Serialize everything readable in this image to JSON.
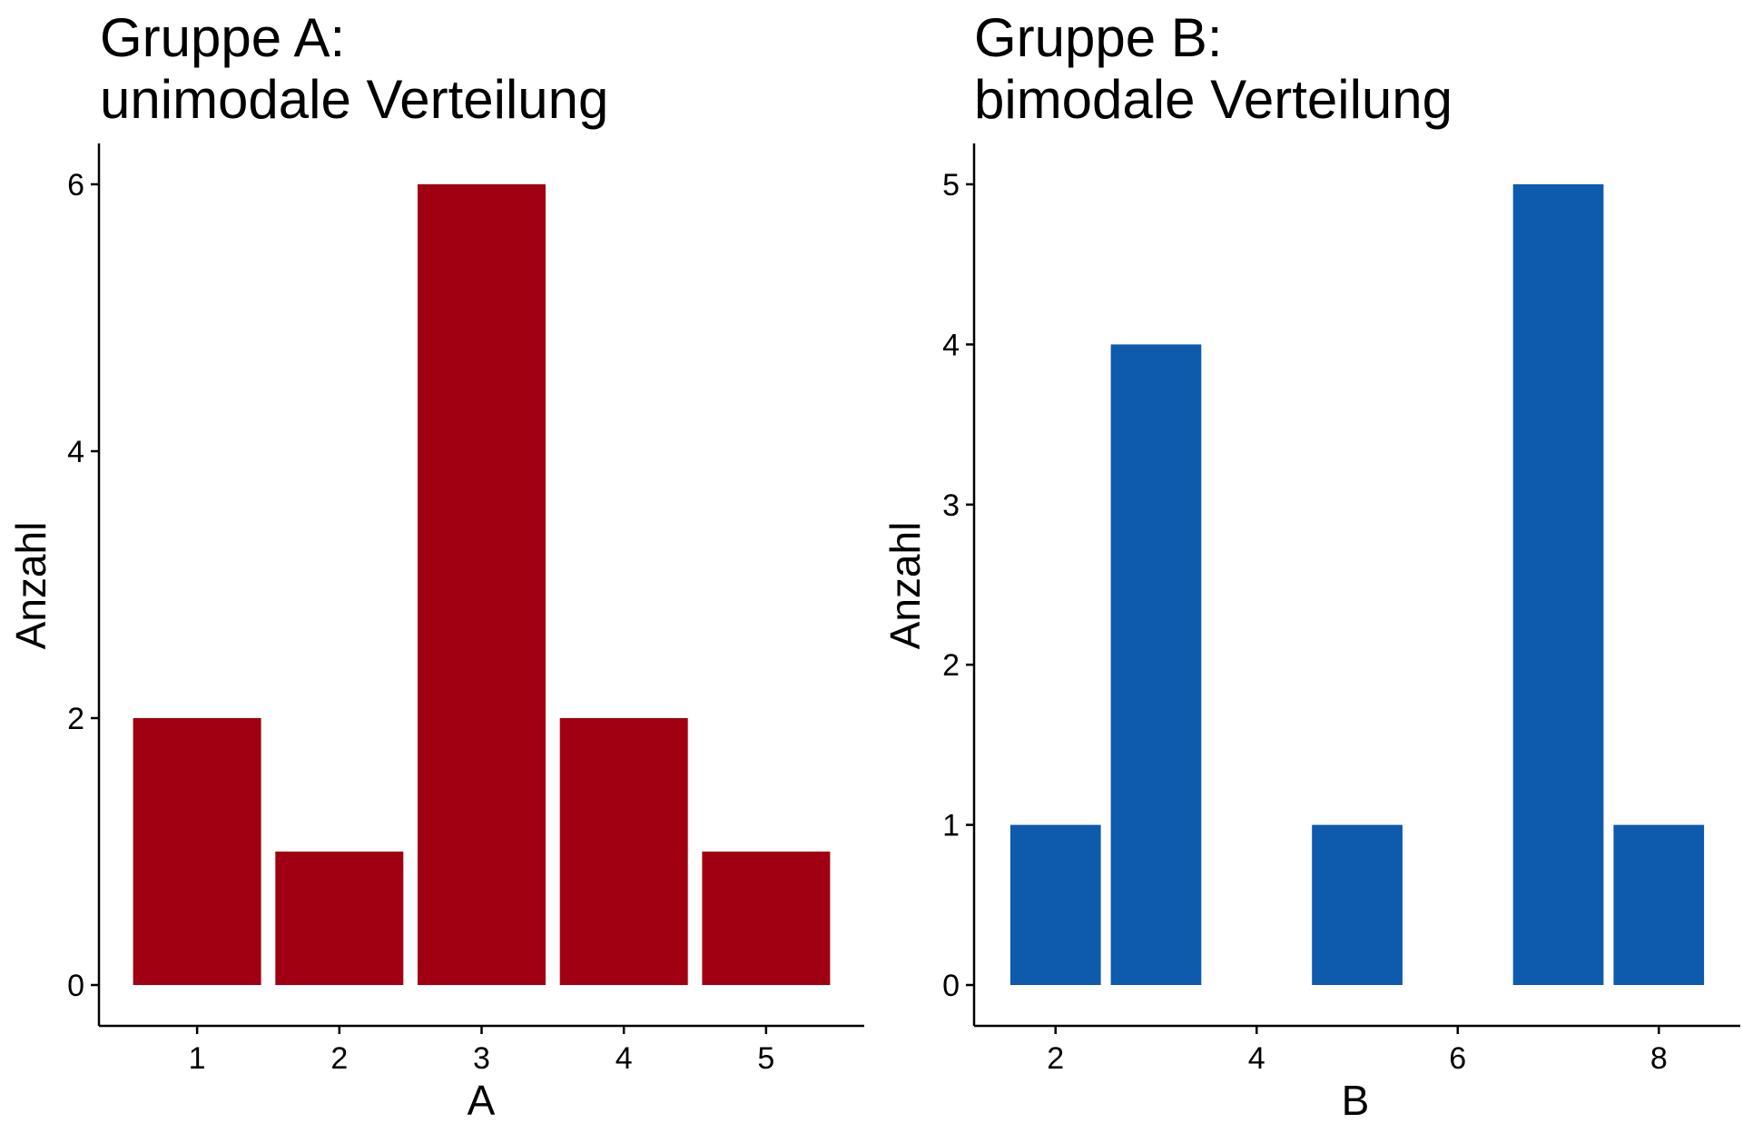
{
  "chart_data": [
    {
      "type": "bar",
      "title_line1": "Gruppe A:",
      "title_line2": "unimodale Verteilung",
      "xlabel": "A",
      "ylabel": "Anzahl",
      "x": [
        1,
        2,
        3,
        4,
        5
      ],
      "values": [
        2,
        1,
        6,
        2,
        1
      ],
      "xticks": [
        "1",
        "2",
        "3",
        "4",
        "5"
      ],
      "yticks": [
        "0",
        "2",
        "4",
        "6"
      ],
      "xlim": [
        0.31,
        5.69
      ],
      "ylim": [
        0,
        6
      ],
      "bar_color": "#A10012",
      "grid": false
    },
    {
      "type": "bar",
      "title_line1": "Gruppe B:",
      "title_line2": "bimodale Verteilung",
      "xlabel": "B",
      "ylabel": "Anzahl",
      "x": [
        2,
        3,
        5,
        7,
        8
      ],
      "values": [
        1,
        4,
        1,
        5,
        1
      ],
      "xticks": [
        "2",
        "4",
        "6",
        "8"
      ],
      "yticks": [
        "0",
        "1",
        "2",
        "3",
        "4",
        "5"
      ],
      "xlim": [
        1.19,
        8.81
      ],
      "ylim": [
        0,
        5
      ],
      "bar_color": "#0E5AAC",
      "grid": false
    }
  ]
}
